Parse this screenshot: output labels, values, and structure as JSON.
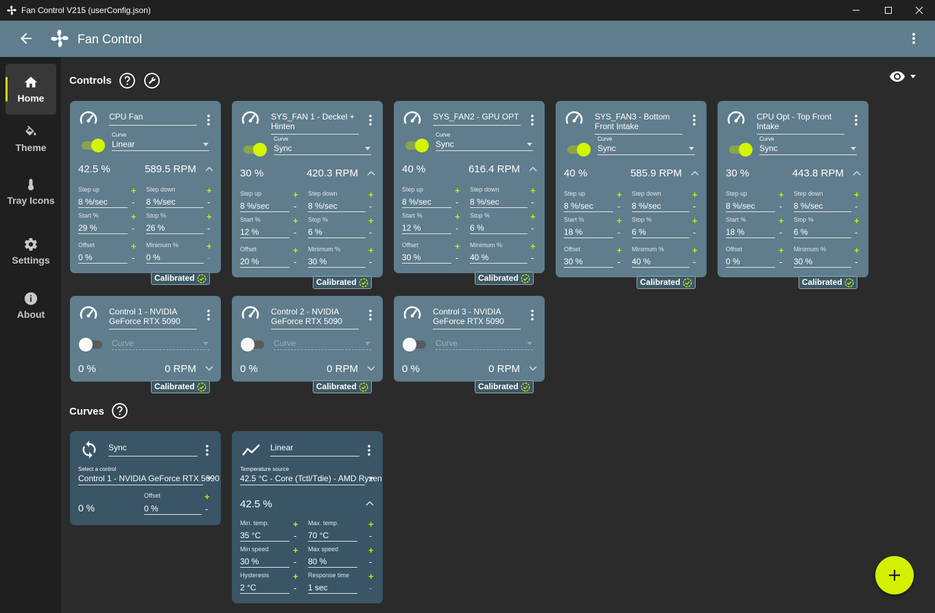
{
  "window": {
    "title": "Fan Control V215 (userConfig.json)"
  },
  "header": {
    "title": "Fan Control"
  },
  "sidebar": {
    "items": [
      {
        "label": "Home",
        "icon": "home-icon"
      },
      {
        "label": "Theme",
        "icon": "paint-bucket-icon"
      },
      {
        "label": "Tray Icons",
        "icon": "thermometer-icon"
      },
      {
        "label": "Settings",
        "icon": "gear-icon"
      },
      {
        "label": "About",
        "icon": "info-icon"
      }
    ]
  },
  "sections": {
    "controls": "Controls",
    "curves": "Curves"
  },
  "labels": {
    "curve": "Curve",
    "step_up": "Step up",
    "step_down": "Step down",
    "start": "Start %",
    "stop": "Stop %",
    "offset": "Offset",
    "minimum": "Minimum %",
    "calibrated": "Calibrated",
    "select_control": "Select a control",
    "temp_source": "Temperature source",
    "min_temp": "Min. temp.",
    "max_temp": "Max. temp.",
    "min_speed": "Min speed",
    "max_speed": "Max speed",
    "hysteresis": "Hysteresis",
    "response_time": "Response time"
  },
  "controls": [
    {
      "name": "CPU Fan",
      "curve": "Linear",
      "percent": "42.5 %",
      "rpm": "589.5 RPM",
      "step_up": "8 %/sec",
      "step_down": "8 %/sec",
      "start": "29 %",
      "stop": "26 %",
      "offset": "0 %",
      "minimum": "0 %"
    },
    {
      "name": "SYS_FAN 1 - Deckel + Hinten",
      "curve": "Sync",
      "percent": "30 %",
      "rpm": "420.3 RPM",
      "step_up": "8 %/sec",
      "step_down": "8 %/sec",
      "start": "12 %",
      "stop": "6 %",
      "offset": "20 %",
      "minimum": "30 %"
    },
    {
      "name": "SYS_FAN2 - GPU OPT",
      "curve": "Sync",
      "percent": "40 %",
      "rpm": "616.4 RPM",
      "step_up": "8 %/sec",
      "step_down": "8 %/sec",
      "start": "12 %",
      "stop": "6 %",
      "offset": "30 %",
      "minimum": "40 %"
    },
    {
      "name": "SYS_FAN3 - Bottom Front Intake",
      "curve": "Sync",
      "percent": "40 %",
      "rpm": "585.9 RPM",
      "step_up": "8 %/sec",
      "step_down": "8 %/sec",
      "start": "18 %",
      "stop": "6 %",
      "offset": "30 %",
      "minimum": "40 %"
    },
    {
      "name": "CPU Opt - Top Front Intake",
      "curve": "Sync",
      "percent": "30 %",
      "rpm": "443.8 RPM",
      "step_up": "8 %/sec",
      "step_down": "8 %/sec",
      "start": "18 %",
      "stop": "6 %",
      "offset": "0 %",
      "minimum": "30 %"
    },
    {
      "name": "Control 1 - NVIDIA GeForce RTX 5090",
      "curve": "Curve",
      "percent": "0 %",
      "rpm": "0 RPM"
    },
    {
      "name": "Control 2 - NVIDIA GeForce RTX 5090",
      "curve": "Curve",
      "percent": "0 %",
      "rpm": "0 RPM"
    },
    {
      "name": "Control 3 - NVIDIA GeForce RTX 5090",
      "curve": "Curve",
      "percent": "0 %",
      "rpm": "0 RPM"
    }
  ],
  "curves": {
    "sync": {
      "name": "Sync",
      "control": "Control 1 - NVIDIA GeForce RTX 5090",
      "value": "0 %",
      "offset": "0 %"
    },
    "linear": {
      "name": "Linear",
      "source": "42.5 °C - Core (Tctl/Tdie) - AMD Ryzen",
      "value": "42.5 %",
      "min_temp": "35 °C",
      "max_temp": "70 °C",
      "min_speed": "30 %",
      "max_speed": "80 %",
      "hysteresis": "2 °C",
      "response_time": "1 sec"
    }
  },
  "colors": {
    "accent": "#d4f000",
    "card": "#5f7d8c",
    "curve_card": "#395566",
    "background": "#2b2b2b"
  }
}
